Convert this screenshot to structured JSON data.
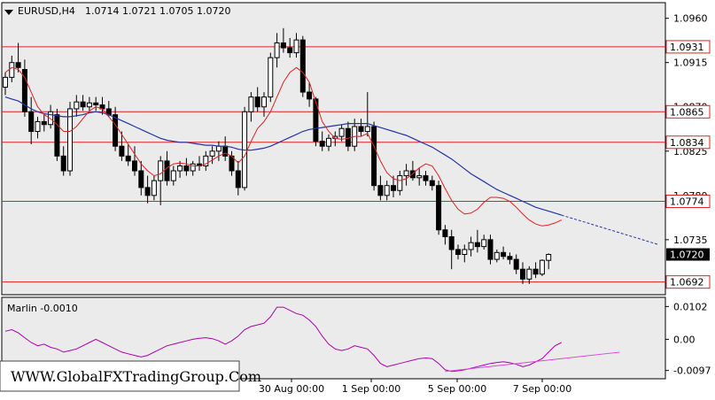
{
  "chart_data": [
    {
      "type": "candlestick",
      "symbol_label": "EURUSD,H4",
      "ohlc_label": "1.0714 1.0721 1.0705 1.0720",
      "ylim": [
        1.068,
        1.0975
      ],
      "y_ticks": [
        "1.0960",
        "1.0915",
        "1.0870",
        "1.0825",
        "1.0780",
        "1.0735"
      ],
      "horizontal_levels": [
        {
          "value": 1.0931,
          "label": "1.0931"
        },
        {
          "value": 1.0865,
          "label": "1.0865"
        },
        {
          "value": 1.0834,
          "label": "1.0834"
        },
        {
          "value": 1.0774,
          "label": "1.0774"
        },
        {
          "value": 1.0692,
          "label": "1.0692"
        }
      ],
      "current_price": {
        "value": 1.072,
        "label": "1.0720"
      },
      "ma_fast_color": "#dd2222",
      "ma_slow_color": "#2233aa",
      "level_color": "#e02020",
      "candles": [
        [
          1.089,
          1.0905,
          1.0882,
          1.09
        ],
        [
          1.09,
          1.0922,
          1.0895,
          1.0915
        ],
        [
          1.0915,
          1.0935,
          1.0905,
          1.091
        ],
        [
          1.0908,
          1.0918,
          1.086,
          1.0865
        ],
        [
          1.0865,
          1.088,
          1.0832,
          1.0845
        ],
        [
          1.0845,
          1.086,
          1.0838,
          1.0855
        ],
        [
          1.0855,
          1.0862,
          1.0845,
          1.0852
        ],
        [
          1.0852,
          1.0872,
          1.0848,
          1.0865
        ],
        [
          1.0862,
          1.0868,
          1.0815,
          1.082
        ],
        [
          1.082,
          1.083,
          1.08,
          1.0805
        ],
        [
          1.0805,
          1.0875,
          1.08,
          1.0868
        ],
        [
          1.0868,
          1.0882,
          1.086,
          1.0875
        ],
        [
          1.0875,
          1.0882,
          1.0866,
          1.087
        ],
        [
          1.087,
          1.088,
          1.0865,
          1.0874
        ],
        [
          1.0874,
          1.088,
          1.0866,
          1.0872
        ],
        [
          1.0872,
          1.088,
          1.0862,
          1.0868
        ],
        [
          1.0868,
          1.0876,
          1.086,
          1.0862
        ],
        [
          1.0862,
          1.087,
          1.0825,
          1.083
        ],
        [
          1.083,
          1.0845,
          1.0815,
          1.082
        ],
        [
          1.082,
          1.0832,
          1.081,
          1.0815
        ],
        [
          1.0815,
          1.083,
          1.08,
          1.0805
        ],
        [
          1.0805,
          1.0815,
          1.078,
          1.0788
        ],
        [
          1.0788,
          1.08,
          1.0772,
          1.078
        ],
        [
          1.078,
          1.08,
          1.0775,
          1.0795
        ],
        [
          1.0795,
          1.082,
          1.077,
          1.0815
        ],
        [
          1.0815,
          1.0825,
          1.079,
          1.0795
        ],
        [
          1.0795,
          1.081,
          1.079,
          1.0805
        ],
        [
          1.0805,
          1.0815,
          1.0798,
          1.081
        ],
        [
          1.081,
          1.0818,
          1.08,
          1.0805
        ],
        [
          1.0805,
          1.0815,
          1.08,
          1.0812
        ],
        [
          1.0812,
          1.082,
          1.0805,
          1.081
        ],
        [
          1.081,
          1.0825,
          1.0805,
          1.082
        ],
        [
          1.082,
          1.083,
          1.0812,
          1.0825
        ],
        [
          1.0825,
          1.0835,
          1.0815,
          1.083
        ],
        [
          1.083,
          1.084,
          1.0815,
          1.082
        ],
        [
          1.082,
          1.0825,
          1.08,
          1.0805
        ],
        [
          1.0805,
          1.0815,
          1.078,
          1.0788
        ],
        [
          1.0788,
          1.087,
          1.0785,
          1.0865
        ],
        [
          1.0865,
          1.0885,
          1.0855,
          1.088
        ],
        [
          1.088,
          1.089,
          1.0865,
          1.087
        ],
        [
          1.087,
          1.0885,
          1.086,
          1.088
        ],
        [
          1.088,
          1.0925,
          1.0875,
          1.092
        ],
        [
          1.092,
          1.0945,
          1.091,
          1.0935
        ],
        [
          1.0935,
          1.095,
          1.0925,
          1.093
        ],
        [
          1.093,
          1.094,
          1.092,
          1.0925
        ],
        [
          1.0925,
          1.0945,
          1.092,
          1.0938
        ],
        [
          1.0938,
          1.0942,
          1.088,
          1.0885
        ],
        [
          1.0885,
          1.0895,
          1.087,
          1.0878
        ],
        [
          1.0878,
          1.088,
          1.083,
          1.0835
        ],
        [
          1.0835,
          1.0845,
          1.0825,
          1.083
        ],
        [
          1.083,
          1.0842,
          1.0825,
          1.0838
        ],
        [
          1.0838,
          1.0845,
          1.083,
          1.084
        ],
        [
          1.084,
          1.0852,
          1.0835,
          1.0848
        ],
        [
          1.0848,
          1.0855,
          1.0825,
          1.083
        ],
        [
          1.083,
          1.0858,
          1.0825,
          1.085
        ],
        [
          1.085,
          1.0858,
          1.084,
          1.0845
        ],
        [
          1.0845,
          1.0885,
          1.084,
          1.085
        ],
        [
          1.085,
          1.0855,
          1.0785,
          1.079
        ],
        [
          1.079,
          1.08,
          1.0775,
          1.078
        ],
        [
          1.078,
          1.0795,
          1.0775,
          1.079
        ],
        [
          1.079,
          1.08,
          1.0778,
          1.0785
        ],
        [
          1.0785,
          1.0805,
          1.078,
          1.08
        ],
        [
          1.08,
          1.0812,
          1.079,
          1.0805
        ],
        [
          1.0805,
          1.0815,
          1.0795,
          1.0798
        ],
        [
          1.0798,
          1.0808,
          1.079,
          1.08
        ],
        [
          1.08,
          1.0805,
          1.079,
          1.0795
        ],
        [
          1.0795,
          1.08,
          1.0785,
          1.079
        ],
        [
          1.079,
          1.0795,
          1.074,
          1.0745
        ],
        [
          1.0745,
          1.075,
          1.073,
          1.0738
        ],
        [
          1.0738,
          1.0745,
          1.0705,
          1.0725
        ],
        [
          1.0725,
          1.073,
          1.0715,
          1.072
        ],
        [
          1.072,
          1.073,
          1.0712,
          1.0725
        ],
        [
          1.0725,
          1.0738,
          1.0718,
          1.0732
        ],
        [
          1.0732,
          1.0745,
          1.0722,
          1.0728
        ],
        [
          1.0728,
          1.074,
          1.0725,
          1.0735
        ],
        [
          1.0735,
          1.074,
          1.071,
          1.0715
        ],
        [
          1.0715,
          1.0725,
          1.0712,
          1.0722
        ],
        [
          1.0722,
          1.0728,
          1.0715,
          1.0718
        ],
        [
          1.0718,
          1.0722,
          1.071,
          1.0715
        ],
        [
          1.0715,
          1.072,
          1.07,
          1.0705
        ],
        [
          1.0705,
          1.0712,
          1.069,
          1.0695
        ],
        [
          1.0695,
          1.0708,
          1.069,
          1.0705
        ],
        [
          1.0705,
          1.0712,
          1.0696,
          1.07
        ],
        [
          1.07,
          1.0715,
          1.0698,
          1.0714
        ],
        [
          1.0714,
          1.0721,
          1.0705,
          1.072
        ]
      ],
      "ma_fast": [
        1.0905,
        1.091,
        1.0908,
        1.09,
        1.0885,
        1.087,
        1.0862,
        1.0858,
        1.0852,
        1.0845,
        1.0845,
        1.085,
        1.0858,
        1.0866,
        1.087,
        1.0868,
        1.086,
        1.0852,
        1.0842,
        1.0832,
        1.0822,
        1.0812,
        1.0805,
        1.08,
        1.0802,
        1.0808,
        1.0812,
        1.0813,
        1.0812,
        1.081,
        1.081,
        1.0812,
        1.0816,
        1.082,
        1.0823,
        1.082,
        1.0813,
        1.082,
        1.0835,
        1.0848,
        1.0855,
        1.0865,
        1.088,
        1.0895,
        1.0905,
        1.091,
        1.0905,
        1.0895,
        1.0875,
        1.0855,
        1.0845,
        1.0838,
        1.0837,
        1.0838,
        1.084,
        1.084,
        1.0843,
        1.083,
        1.0815,
        1.0803,
        1.0797,
        1.0795,
        1.0797,
        1.0802,
        1.0808,
        1.0812,
        1.081,
        1.08,
        1.0787,
        1.0775,
        1.0766,
        1.0761,
        1.0762,
        1.0766,
        1.0773,
        1.0778,
        1.0778,
        1.0777,
        1.0774,
        1.0768,
        1.0761,
        1.0755,
        1.0751,
        1.0749,
        1.075,
        1.0752,
        1.0755
      ],
      "ma_slow": [
        1.088,
        1.0878,
        1.0876,
        1.0872,
        1.0868,
        1.0865,
        1.0863,
        1.0862,
        1.0861,
        1.086,
        1.086,
        1.0861,
        1.0862,
        1.0864,
        1.0865,
        1.0864,
        1.0862,
        1.0859,
        1.0856,
        1.0853,
        1.085,
        1.0847,
        1.0844,
        1.0841,
        1.0838,
        1.0836,
        1.0835,
        1.0834,
        1.0834,
        1.0833,
        1.0832,
        1.0831,
        1.0831,
        1.083,
        1.083,
        1.0829,
        1.0827,
        1.0826,
        1.0826,
        1.0827,
        1.0828,
        1.083,
        1.0833,
        1.0836,
        1.0839,
        1.0842,
        1.0845,
        1.0847,
        1.0848,
        1.0849,
        1.085,
        1.0851,
        1.0852,
        1.0853,
        1.0853,
        1.0853,
        1.0853,
        1.0851,
        1.0849,
        1.0847,
        1.0845,
        1.0843,
        1.0841,
        1.0838,
        1.0835,
        1.0832,
        1.0829,
        1.0825,
        1.0821,
        1.0817,
        1.0812,
        1.0807,
        1.0802,
        1.0798,
        1.0794,
        1.079,
        1.0786,
        1.0783,
        1.078,
        1.0777,
        1.0774,
        1.0771,
        1.0768,
        1.0766,
        1.0764,
        1.0762,
        1.076
      ],
      "ma_slow_projection": [
        1.076,
        1.0758,
        1.0756,
        1.0754,
        1.0752,
        1.075,
        1.0748,
        1.0746,
        1.0744,
        1.0742,
        1.074,
        1.0738,
        1.0736,
        1.0734,
        1.0732,
        1.073
      ]
    },
    {
      "type": "line",
      "indicator_label": "Marlin -0.0010",
      "ylim": [
        -0.012,
        0.0125
      ],
      "y_ticks": [
        "0.0102",
        "0.00",
        "-0.0097"
      ],
      "line_color": "#aa00aa",
      "trendline_color": "#dd44dd",
      "values": [
        0.0025,
        0.003,
        0.002,
        0.0005,
        -0.001,
        -0.002,
        -0.0015,
        -0.0025,
        -0.003,
        -0.004,
        -0.0035,
        -0.003,
        -0.002,
        -0.001,
        0.0,
        -0.001,
        -0.002,
        -0.003,
        -0.004,
        -0.0045,
        -0.005,
        -0.0055,
        -0.005,
        -0.004,
        -0.003,
        -0.002,
        -0.0015,
        -0.001,
        -0.0005,
        0.0,
        0.0003,
        0.0005,
        0.0002,
        -0.0005,
        -0.0015,
        -0.0005,
        0.001,
        0.003,
        0.004,
        0.0045,
        0.005,
        0.007,
        0.01,
        0.01,
        0.009,
        0.008,
        0.0075,
        0.006,
        0.004,
        0.001,
        -0.0015,
        -0.003,
        -0.0035,
        -0.003,
        -0.002,
        -0.0025,
        -0.003,
        -0.005,
        -0.0075,
        -0.0085,
        -0.008,
        -0.0075,
        -0.007,
        -0.0065,
        -0.006,
        -0.0058,
        -0.006,
        -0.0075,
        -0.0095,
        -0.01,
        -0.0098,
        -0.0095,
        -0.009,
        -0.0085,
        -0.008,
        -0.0075,
        -0.0072,
        -0.007,
        -0.0073,
        -0.0078,
        -0.0085,
        -0.008,
        -0.007,
        -0.006,
        -0.004,
        -0.002,
        -0.001
      ],
      "trendline": [
        [
          68,
          -0.01
        ],
        [
          95,
          -0.004
        ]
      ]
    }
  ],
  "x_time_labels": [
    "30 Aug 00:00",
    "1 Sep 00:00",
    "5 Sep 00:00",
    "7 Sep 00:00"
  ],
  "watermark": "WWW.GlobalFXTradingGroup.Com"
}
